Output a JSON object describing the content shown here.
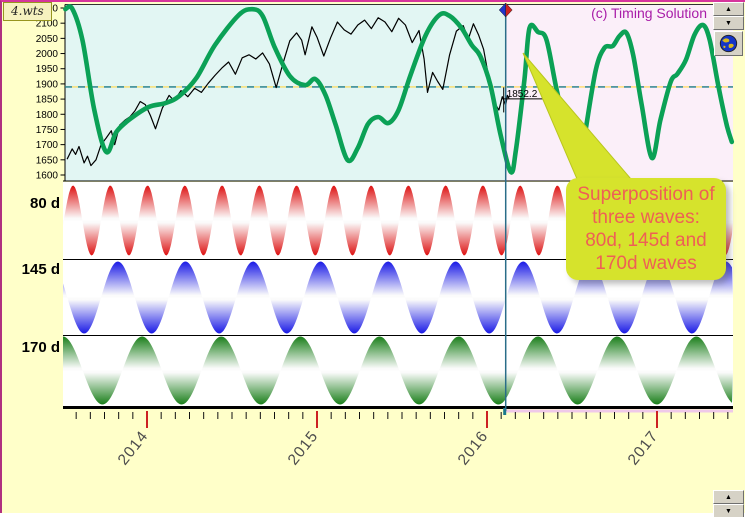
{
  "window": {
    "bg": "#FFFFC9",
    "border_color": "#D6359C"
  },
  "header": {
    "file_label": "4.wts",
    "copyright": "(c) Timing Solution",
    "copyright_color": "#A81CA8"
  },
  "icons": {
    "up_arrow": "▲",
    "down_arrow": "▼",
    "globe": "globe-earth-icon"
  },
  "top_chart": {
    "y_ticks": [
      2150,
      2100,
      2050,
      2000,
      1950,
      1900,
      1850,
      1800,
      1750,
      1700,
      1650,
      1600
    ],
    "y_min": 1600,
    "y_max": 2150,
    "bg_past": "#E2F6F3",
    "bg_future": "#FBEFF9",
    "dashed_line_value": 1890,
    "dashed_colors": [
      "#1B7A8C",
      "#FFD84D"
    ],
    "cursor_year": 2016.11,
    "cursor_color": "#2A6D88",
    "diamond_colors": [
      "#2233CC",
      "#CC2222"
    ],
    "last_price_label": "1852.2",
    "last_price_value": 1852.2
  },
  "x_axis": {
    "years": [
      2014,
      2015,
      2016,
      2017
    ],
    "tick_color": "#CC2222",
    "minor_tick_color": "#111111",
    "label_color": "#4D4D4D",
    "future_strip_color": "#EFC9E9"
  },
  "wave_panels": [
    {
      "label": "80 d",
      "period_days": 80,
      "color": "#DD1111",
      "peak_year": 2013.565
    },
    {
      "label": "145 d",
      "period_days": 145,
      "color": "#1A1AE6",
      "peak_year": 2013.829
    },
    {
      "label": "170 d",
      "period_days": 170,
      "color": "#1A7F1A",
      "peak_year": 2013.971
    }
  ],
  "callout": {
    "lines": [
      "Superposition of",
      "three waves:",
      "80d, 145d and",
      "170d waves"
    ],
    "bg": "#D6E32C",
    "border": "#B9C61E",
    "text_color": "#EE6055",
    "target_year": 2016.21,
    "target_value": 1990
  },
  "chart_data": {
    "type": "line",
    "title": "Superposition of three waves: 80d, 145d and 170d waves",
    "x_range_years": [
      2013.5,
      2017.45
    ],
    "y_range": [
      1600,
      2150
    ],
    "series": [
      {
        "name": "price",
        "color": "#000000",
        "points": [
          [
            2013.53,
            1652
          ],
          [
            2013.56,
            1686
          ],
          [
            2013.58,
            1668
          ],
          [
            2013.6,
            1694
          ],
          [
            2013.63,
            1640
          ],
          [
            2013.65,
            1662
          ],
          [
            2013.67,
            1631
          ],
          [
            2013.7,
            1650
          ],
          [
            2013.73,
            1700
          ],
          [
            2013.76,
            1722
          ],
          [
            2013.79,
            1746
          ],
          [
            2013.81,
            1700
          ],
          [
            2013.84,
            1765
          ],
          [
            2013.87,
            1780
          ],
          [
            2013.9,
            1792
          ],
          [
            2013.93,
            1812
          ],
          [
            2013.96,
            1842
          ],
          [
            2013.99,
            1832
          ],
          [
            2014.02,
            1796
          ],
          [
            2014.05,
            1752
          ],
          [
            2014.09,
            1820
          ],
          [
            2014.13,
            1862
          ],
          [
            2014.16,
            1844
          ],
          [
            2014.2,
            1878
          ],
          [
            2014.24,
            1858
          ],
          [
            2014.28,
            1886
          ],
          [
            2014.32,
            1872
          ],
          [
            2014.36,
            1902
          ],
          [
            2014.4,
            1928
          ],
          [
            2014.44,
            1952
          ],
          [
            2014.48,
            1972
          ],
          [
            2014.52,
            1932
          ],
          [
            2014.56,
            1986
          ],
          [
            2014.6,
            1996
          ],
          [
            2014.64,
            1982
          ],
          [
            2014.68,
            2002
          ],
          [
            2014.72,
            1966
          ],
          [
            2014.76,
            1888
          ],
          [
            2014.8,
            1968
          ],
          [
            2014.84,
            2042
          ],
          [
            2014.88,
            2068
          ],
          [
            2014.91,
            2044
          ],
          [
            2014.93,
            1996
          ],
          [
            2014.97,
            2088
          ],
          [
            2015.0,
            2054
          ],
          [
            2015.04,
            1992
          ],
          [
            2015.08,
            2052
          ],
          [
            2015.12,
            2104
          ],
          [
            2015.16,
            2078
          ],
          [
            2015.2,
            2064
          ],
          [
            2015.24,
            2094
          ],
          [
            2015.28,
            2110
          ],
          [
            2015.32,
            2082
          ],
          [
            2015.36,
            2118
          ],
          [
            2015.4,
            2104
          ],
          [
            2015.44,
            2072
          ],
          [
            2015.48,
            2116
          ],
          [
            2015.52,
            2094
          ],
          [
            2015.56,
            2036
          ],
          [
            2015.6,
            2076
          ],
          [
            2015.63,
            1982
          ],
          [
            2015.65,
            1872
          ],
          [
            2015.68,
            1938
          ],
          [
            2015.71,
            1908
          ],
          [
            2015.74,
            1882
          ],
          [
            2015.78,
            1996
          ],
          [
            2015.82,
            2074
          ],
          [
            2015.86,
            2092
          ],
          [
            2015.89,
            2048
          ],
          [
            2015.92,
            2098
          ],
          [
            2015.95,
            2062
          ],
          [
            2015.98,
            2014
          ],
          [
            2016.01,
            1922
          ],
          [
            2016.03,
            1868
          ],
          [
            2016.05,
            1832
          ],
          [
            2016.07,
            1814
          ],
          [
            2016.09,
            1858
          ],
          [
            2016.11,
            1830
          ],
          [
            2016.12,
            1862
          ],
          [
            2016.13,
            1852.2
          ]
        ]
      },
      {
        "name": "superposition",
        "color": "#0BA156",
        "points": [
          [
            2013.52,
            2146
          ],
          [
            2013.56,
            2148
          ],
          [
            2013.62,
            2045
          ],
          [
            2013.69,
            1814
          ],
          [
            2013.76,
            1676
          ],
          [
            2013.82,
            1742
          ],
          [
            2013.9,
            1784
          ],
          [
            2014.01,
            1824
          ],
          [
            2014.11,
            1837
          ],
          [
            2014.19,
            1860
          ],
          [
            2014.29,
            1919
          ],
          [
            2014.4,
            2028
          ],
          [
            2014.54,
            2127
          ],
          [
            2014.62,
            2146
          ],
          [
            2014.68,
            2124
          ],
          [
            2014.75,
            2022
          ],
          [
            2014.84,
            1926
          ],
          [
            2014.93,
            1896
          ],
          [
            2014.99,
            1916
          ],
          [
            2015.05,
            1863
          ],
          [
            2015.11,
            1765
          ],
          [
            2015.18,
            1649
          ],
          [
            2015.24,
            1689
          ],
          [
            2015.3,
            1768
          ],
          [
            2015.36,
            1791
          ],
          [
            2015.42,
            1771
          ],
          [
            2015.48,
            1814
          ],
          [
            2015.55,
            1929
          ],
          [
            2015.64,
            2061
          ],
          [
            2015.72,
            2127
          ],
          [
            2015.78,
            2124
          ],
          [
            2015.85,
            2084
          ],
          [
            2015.91,
            2028
          ],
          [
            2015.96,
            1992
          ],
          [
            2016.02,
            1896
          ],
          [
            2016.08,
            1732
          ],
          [
            2016.14,
            1610
          ],
          [
            2016.17,
            1682
          ],
          [
            2016.22,
            1913
          ],
          [
            2016.25,
            2084
          ],
          [
            2016.3,
            2071
          ],
          [
            2016.35,
            2045
          ],
          [
            2016.41,
            1880
          ],
          [
            2016.48,
            1715
          ],
          [
            2016.54,
            1610
          ],
          [
            2016.58,
            1748
          ],
          [
            2016.64,
            1946
          ],
          [
            2016.69,
            2018
          ],
          [
            2016.74,
            2025
          ],
          [
            2016.78,
            2058
          ],
          [
            2016.82,
            2068
          ],
          [
            2016.86,
            1995
          ],
          [
            2016.91,
            1831
          ],
          [
            2016.97,
            1656
          ],
          [
            2017.02,
            1781
          ],
          [
            2017.08,
            1906
          ],
          [
            2017.12,
            1933
          ],
          [
            2017.17,
            1979
          ],
          [
            2017.22,
            2061
          ],
          [
            2017.27,
            2094
          ],
          [
            2017.31,
            2045
          ],
          [
            2017.36,
            1896
          ],
          [
            2017.41,
            1765
          ],
          [
            2017.44,
            1709
          ]
        ]
      },
      {
        "name": "wave-80d",
        "type": "sine",
        "period_days": 80,
        "peak_year": 2013.565,
        "color": "#DD1111"
      },
      {
        "name": "wave-145d",
        "type": "sine",
        "period_days": 145,
        "peak_year": 2013.829,
        "color": "#1A1AE6"
      },
      {
        "name": "wave-170d",
        "type": "sine",
        "period_days": 170,
        "peak_year": 2013.971,
        "color": "#1A7F1A"
      }
    ]
  }
}
